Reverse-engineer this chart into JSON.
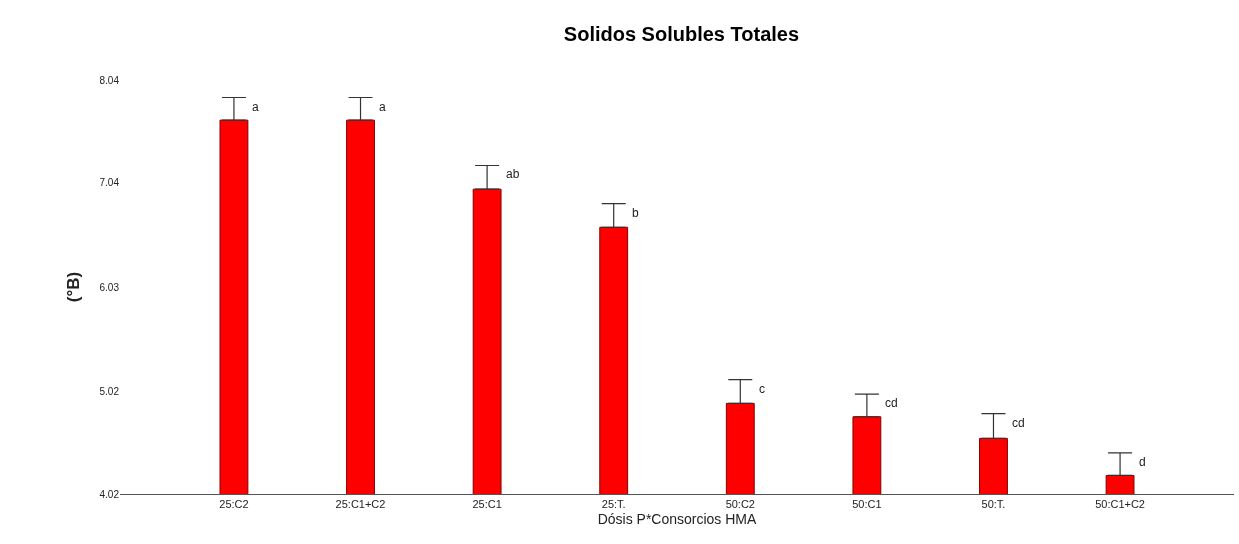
{
  "chart_data": {
    "type": "bar",
    "title": "Solidos Solubles Totales",
    "xlabel": "Dósis P*Consorcios HMA",
    "ylabel": "(°B)",
    "categories": [
      "25:C2",
      "25:C1+C2",
      "25:C1",
      "25:T.",
      "50:C2",
      "50:C1",
      "50:T.",
      "50:C1+C2"
    ],
    "values": [
      7.65,
      7.65,
      6.98,
      6.61,
      4.9,
      4.77,
      4.56,
      4.2
    ],
    "errors": [
      [
        7.65,
        7.87
      ],
      [
        7.65,
        7.87
      ],
      [
        6.98,
        7.21
      ],
      [
        6.61,
        6.84
      ],
      [
        4.9,
        5.13
      ],
      [
        4.77,
        4.99
      ],
      [
        4.56,
        4.8
      ],
      [
        4.2,
        4.42
      ]
    ],
    "color": "#ff0000",
    "ylim": [
      4.02,
      8.04
    ],
    "yticks": [
      4.02,
      5.02,
      6.03,
      7.04,
      8.04
    ],
    "annotations": [
      {
        "text": "a",
        "x": "25:C2",
        "y": 7.87
      },
      {
        "text": "a",
        "x": "25:C1+C2",
        "y": 7.87
      },
      {
        "text": "ab",
        "x": "25:C1",
        "y": 7.21
      },
      {
        "text": "b",
        "x": "25:T.",
        "y": 6.84
      },
      {
        "text": "c",
        "x": "50:C2",
        "y": 5.13
      },
      {
        "text": "cd",
        "x": "50:C1",
        "y": 4.99
      },
      {
        "text": "cd",
        "x": "50:T.",
        "y": 4.8
      },
      {
        "text": "d",
        "x": "50:C1+C2",
        "y": 4.42
      }
    ]
  }
}
